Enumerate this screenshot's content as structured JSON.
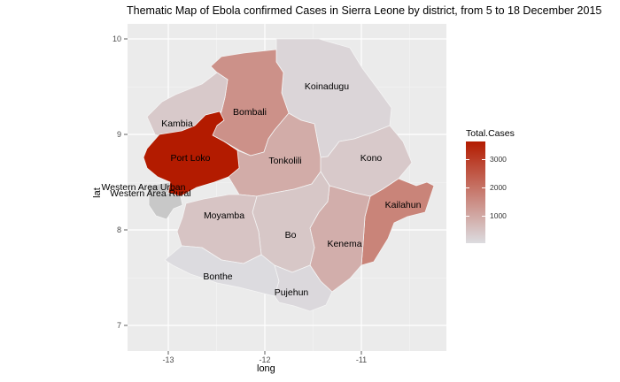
{
  "title": "Thematic Map of Ebola confirmed Cases in Sierra Leone by district, from  5 to 18 December 2015",
  "axes": {
    "x_title": "long",
    "y_title": "lat",
    "x_ticks": [
      "-13",
      "-12",
      "-11"
    ],
    "y_ticks": [
      "10",
      "9",
      "8",
      "7"
    ]
  },
  "legend": {
    "title": "Total.Cases",
    "labels": [
      "3000",
      "2000",
      "1000"
    ],
    "low_color": "#dcdce0",
    "high_color": "#b31b00"
  },
  "colors": {
    "panel_background": "#ebebeb",
    "grid": "#ffffff",
    "district_border": "#ffffff"
  },
  "chart_data": {
    "type": "choropleth",
    "variable": "Total.Cases",
    "scale_max": 3600,
    "districts": [
      {
        "name": "Koinadugu",
        "cases": 130
      },
      {
        "name": "Bombali",
        "cases": 1400
      },
      {
        "name": "Kambia",
        "cases": 350
      },
      {
        "name": "Port Loko",
        "cases": 3600
      },
      {
        "name": "Tonkolili",
        "cases": 900
      },
      {
        "name": "Kono",
        "cases": 350
      },
      {
        "name": "Kailahun",
        "cases": 1650
      },
      {
        "name": "Western Area Urban",
        "cases": null
      },
      {
        "name": "Western Area Rural",
        "cases": null
      },
      {
        "name": "Moyamba",
        "cases": 450
      },
      {
        "name": "Bo",
        "cases": 400
      },
      {
        "name": "Kenema",
        "cases": 850
      },
      {
        "name": "Bonthe",
        "cases": 20
      },
      {
        "name": "Pujehun",
        "cases": 70
      }
    ]
  }
}
